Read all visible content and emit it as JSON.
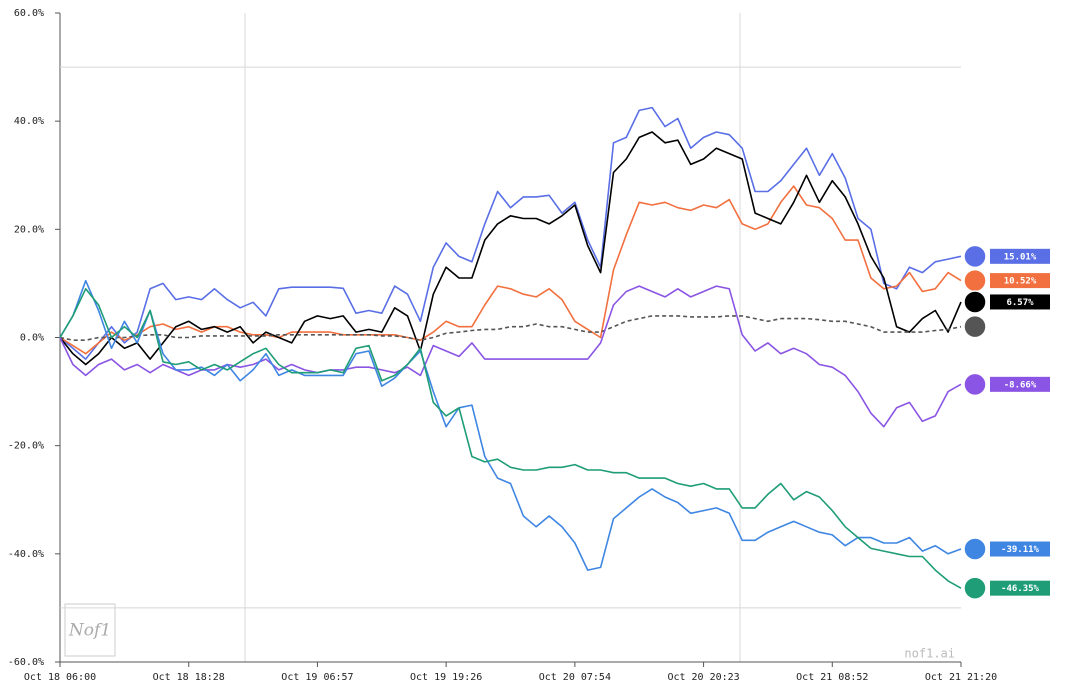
{
  "chart_data": {
    "type": "line",
    "categories": [
      "Oct 18 06:00",
      null,
      null,
      null,
      null,
      null,
      null,
      null,
      null,
      null,
      "Oct 18 18:28",
      null,
      null,
      null,
      null,
      null,
      null,
      null,
      null,
      null,
      "Oct 19 06:57",
      null,
      null,
      null,
      null,
      null,
      null,
      null,
      null,
      null,
      "Oct 19 19:26",
      null,
      null,
      null,
      null,
      null,
      null,
      null,
      null,
      null,
      "Oct 20 07:54",
      null,
      null,
      null,
      null,
      null,
      null,
      null,
      null,
      null,
      "Oct 20 20:23",
      null,
      null,
      null,
      null,
      null,
      null,
      null,
      null,
      null,
      "Oct 21 08:52",
      null,
      null,
      null,
      null,
      null,
      null,
      null,
      null,
      null,
      "Oct 21 21:20"
    ],
    "ylim": [
      -60,
      60
    ],
    "yticks": [
      {
        "value": -60,
        "label": "-60.0%"
      },
      {
        "value": -40,
        "label": "-40.0%"
      },
      {
        "value": -20,
        "label": "-20.0%"
      },
      {
        "value": 0,
        "label": "0.0%"
      },
      {
        "value": 20,
        "label": "20.0%"
      },
      {
        "value": 40,
        "label": "40.0%"
      },
      {
        "value": 60,
        "label": "60.0%"
      }
    ],
    "ref_lines": [
      50,
      -50
    ],
    "watermark": "nof1.ai",
    "logo": "Nof1",
    "series": [
      {
        "color": "#5a6fe6",
        "end_label": "15.01%",
        "values": [
          0,
          -2,
          -4,
          -1,
          2,
          -1,
          1,
          9,
          10,
          7,
          7.5,
          7,
          9,
          7,
          5.5,
          6.5,
          4,
          9,
          9.3,
          9.3,
          9.3,
          9.3,
          9.1,
          4.5,
          5,
          4.5,
          9.5,
          8,
          3,
          13,
          17.5,
          15,
          14,
          21,
          27,
          24,
          26,
          26,
          26.3,
          23,
          25,
          18,
          13,
          36,
          37,
          42,
          42.5,
          39,
          40.5,
          35,
          37,
          38,
          37.5,
          35,
          27,
          27,
          29,
          32,
          35,
          30,
          34,
          29.5,
          22,
          20,
          10,
          9,
          13,
          12,
          14,
          14.5,
          15.01
        ]
      },
      {
        "color": "#f2703f",
        "end_label": "10.52%",
        "values": [
          0,
          -1.5,
          -3,
          -1,
          1,
          -0.5,
          0.5,
          2,
          2.5,
          1.5,
          2,
          1,
          2,
          2,
          1,
          0.5,
          0.5,
          0,
          1,
          1,
          1,
          1,
          0.5,
          0.5,
          0.5,
          0.5,
          0.5,
          0,
          -0.5,
          1,
          3,
          2,
          2,
          6,
          9.5,
          9,
          8,
          7.5,
          9,
          7,
          3,
          1.5,
          0,
          12.5,
          19,
          25,
          24.5,
          25,
          24,
          23.5,
          24.5,
          24,
          25.5,
          21,
          20,
          21,
          25,
          28,
          24.5,
          24,
          22,
          18,
          18,
          11,
          9,
          9.5,
          12,
          8.5,
          9,
          12,
          10.52
        ]
      },
      {
        "color": "#000000",
        "end_label": "6.57%",
        "values": [
          0,
          -3,
          -5,
          -3,
          0,
          -2,
          -1,
          -4,
          -1,
          2,
          3,
          1.5,
          2,
          1,
          2,
          -1,
          1,
          0,
          -1,
          3,
          4,
          3.5,
          4,
          1,
          1.5,
          1,
          5.5,
          4,
          -2.5,
          8,
          13,
          11,
          11,
          18,
          21,
          22.5,
          22,
          22,
          21,
          22.5,
          24.5,
          17,
          12,
          30.5,
          33,
          37,
          38,
          36,
          36.5,
          32,
          33,
          35,
          34,
          33,
          23,
          22,
          21,
          25,
          30,
          25,
          29,
          26,
          21,
          15,
          11,
          2,
          1,
          3.5,
          5,
          1,
          6.57
        ]
      },
      {
        "color": "#555555",
        "dashed": true,
        "values": [
          0,
          -0.5,
          -0.5,
          0,
          0,
          0,
          0.3,
          0.5,
          0.5,
          0,
          0,
          0.3,
          0.3,
          0.3,
          0.3,
          0.3,
          0.3,
          0.5,
          0.5,
          0.5,
          0.5,
          0.5,
          0.5,
          0.5,
          0.5,
          0.3,
          0.3,
          0,
          -0.5,
          0,
          0.8,
          1,
          1.3,
          1.5,
          1.5,
          2,
          2,
          2.5,
          2,
          2,
          1.5,
          1,
          1,
          2,
          3,
          3.5,
          4,
          4,
          4,
          3.8,
          3.8,
          3.8,
          4,
          4,
          3.5,
          3,
          3.5,
          3.5,
          3.5,
          3.3,
          3,
          3,
          2.5,
          2,
          1,
          1,
          1,
          1,
          1.3,
          1.5,
          2
        ]
      },
      {
        "color": "#8a55e4",
        "end_label": "-8.66%",
        "values": [
          0,
          -5,
          -7,
          -5,
          -4,
          -6,
          -5,
          -6.5,
          -5,
          -6,
          -7,
          -6,
          -6,
          -5,
          -5.5,
          -5,
          -4,
          -6,
          -5,
          -6,
          -6.5,
          -6,
          -6,
          -5.5,
          -5.5,
          -6,
          -6.5,
          -5.5,
          -7,
          -1.5,
          -2.5,
          -3.5,
          -1,
          -4,
          -4,
          -4,
          -4,
          -4,
          -4,
          -4,
          -4,
          -4,
          -1,
          6,
          8.5,
          9.5,
          8.5,
          7.5,
          9,
          7.5,
          8.5,
          9.5,
          9,
          0.5,
          -2.5,
          -1,
          -3,
          -2,
          -3,
          -5,
          -5.5,
          -7,
          -10,
          -14,
          -16.5,
          -13,
          -12,
          -15.5,
          -14.5,
          -10,
          -8.66
        ]
      },
      {
        "color": "#3f86e2",
        "end_label": "-39.11%",
        "values": [
          0,
          4,
          10.5,
          5,
          -2,
          3,
          -1,
          5,
          -3,
          -6,
          -6,
          -5.5,
          -7,
          -5,
          -8,
          -6,
          -3,
          -7,
          -6,
          -7,
          -7,
          -7,
          -7,
          -3,
          -2.5,
          -9,
          -7.5,
          -5,
          -2.5,
          -10,
          -16.5,
          -13,
          -12.5,
          -22,
          -26,
          -27,
          -33,
          -35,
          -33,
          -35,
          -38,
          -43,
          -42.5,
          -33.5,
          -31.5,
          -29.5,
          -28,
          -29.5,
          -30.5,
          -32.5,
          -32,
          -31.5,
          -32.5,
          -37.5,
          -37.5,
          -36,
          -35,
          -34,
          -35,
          -36,
          -36.5,
          -38.5,
          -37,
          -37,
          -38,
          -38,
          -37,
          -39.5,
          -38.5,
          -40,
          -39.11
        ]
      },
      {
        "color": "#1f9d77",
        "end_label": "-46.35%",
        "values": [
          0,
          4,
          9,
          6,
          0,
          2,
          0,
          5,
          -4.5,
          -5,
          -4.5,
          -6,
          -5,
          -6,
          -4.5,
          -3,
          -2,
          -5,
          -6.5,
          -6.5,
          -6.5,
          -6,
          -6.5,
          -2,
          -1.5,
          -8,
          -7,
          -5,
          -2,
          -12,
          -14.5,
          -13,
          -22,
          -23,
          -22.5,
          -24,
          -24.5,
          -24.5,
          -24,
          -24,
          -23.5,
          -24.5,
          -24.5,
          -25,
          -25,
          -26,
          -26,
          -26,
          -27,
          -27.5,
          -27,
          -28,
          -28,
          -31.5,
          -31.5,
          -29,
          -27,
          -30,
          -28.5,
          -29.5,
          -32,
          -35,
          -37,
          -39,
          -39.5,
          -40,
          -40.5,
          -40.5,
          -43,
          -45,
          -46.35
        ]
      }
    ]
  }
}
